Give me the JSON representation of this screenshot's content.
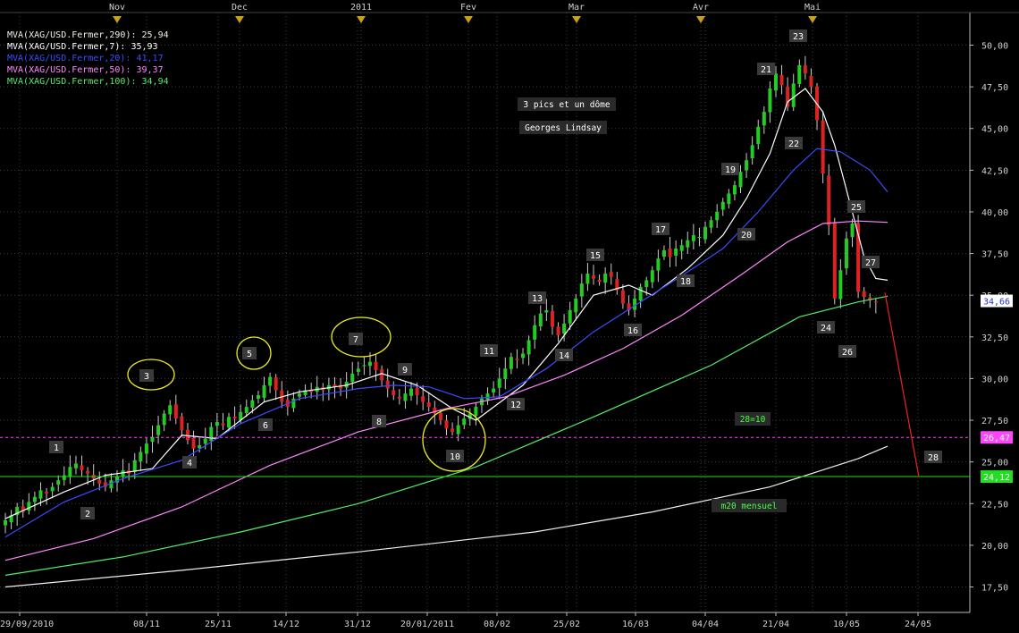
{
  "chart_data": {
    "type": "candlestick",
    "title": "",
    "ylim": [
      16.0,
      51.5
    ],
    "y_ticks": [
      "17,50",
      "20,00",
      "22,50",
      "25,00",
      "27,50",
      "30,00",
      "32,50",
      "35,00",
      "37,50",
      "40,00",
      "42,50",
      "45,00",
      "47,50",
      "50,00"
    ],
    "x_bottom_ticks": [
      "29/09/2010",
      "08/11",
      "25/11",
      "14/12",
      "31/12",
      "20/01/2011",
      "08/02",
      "25/02",
      "16/03",
      "04/04",
      "21/04",
      "10/05",
      "24/05"
    ],
    "x_top_ticks": [
      "Nov",
      "Dec",
      "2011",
      "Fev",
      "Mar",
      "Avr",
      "Mai"
    ],
    "legend": [
      {
        "text": "MVA(XAG/USD.Fermer,290): 25,94",
        "color": "#f0f0e8"
      },
      {
        "text": "MVA(XAG/USD.Fermer,7): 35,93",
        "color": "#ffffff"
      },
      {
        "text": "MVA(XAG/USD.Fermer,20): 41,17",
        "color": "#3a4cff"
      },
      {
        "text": "MVA(XAG/USD.Fermer,50): 39,37",
        "color": "#ff88ff"
      },
      {
        "text": "MVA(XAG/USD.Fermer,100): 34,94",
        "color": "#55ee66"
      }
    ],
    "close": [
      21.5,
      21.8,
      22.3,
      22.0,
      22.6,
      22.9,
      23.3,
      23.1,
      23.5,
      23.9,
      24.2,
      24.7,
      24.9,
      24.5,
      24.3,
      24.0,
      23.7,
      23.5,
      23.9,
      24.1,
      24.5,
      24.3,
      25.1,
      25.6,
      26.1,
      26.5,
      27.2,
      27.9,
      28.4,
      27.6,
      26.9,
      26.3,
      25.8,
      26.0,
      26.4,
      27.1,
      27.4,
      27.2,
      27.7,
      27.6,
      28.0,
      28.3,
      28.7,
      29.0,
      29.6,
      30.1,
      29.3,
      28.6,
      28.3,
      28.8,
      29.1,
      29.3,
      29.2,
      29.5,
      29.3,
      29.6,
      29.5,
      29.4,
      29.8,
      30.3,
      30.6,
      30.8,
      31.0,
      30.5,
      29.9,
      29.4,
      29.0,
      28.8,
      29.1,
      29.4,
      29.0,
      28.6,
      28.3,
      27.9,
      27.5,
      27.0,
      26.8,
      27.2,
      27.6,
      27.9,
      28.3,
      28.8,
      29.1,
      29.4,
      30.0,
      30.6,
      31.3,
      31.1,
      31.5,
      32.3,
      33.2,
      33.9,
      34.1,
      33.1,
      32.6,
      33.3,
      34.1,
      34.8,
      35.7,
      36.3,
      36.0,
      35.8,
      36.3,
      36.1,
      35.3,
      34.5,
      34.1,
      34.8,
      35.5,
      35.9,
      36.5,
      37.2,
      37.7,
      37.3,
      37.8,
      38.0,
      38.3,
      38.6,
      38.5,
      39.1,
      39.5,
      40.0,
      40.6,
      41.1,
      41.6,
      42.4,
      43.1,
      44.0,
      45.1,
      46.0,
      47.4,
      48.3,
      47.6,
      46.3,
      47.7,
      48.8,
      48.3,
      47.5,
      45.5,
      42.3,
      39.2,
      34.8,
      36.5,
      38.4,
      39.3,
      35.2,
      34.9,
      34.7,
      34.6
    ],
    "moving_averages": [
      {
        "name": "MVA 7",
        "color": "#ffffff",
        "values": [
          [
            0,
            21.6
          ],
          [
            10,
            23.2
          ],
          [
            17,
            24.2
          ],
          [
            25,
            24.6
          ],
          [
            30,
            26.6
          ],
          [
            36,
            26.4
          ],
          [
            44,
            28.6
          ],
          [
            50,
            29.2
          ],
          [
            58,
            29.6
          ],
          [
            64,
            30.3
          ],
          [
            70,
            29.6
          ],
          [
            76,
            28.2
          ],
          [
            80,
            27.5
          ],
          [
            88,
            29.6
          ],
          [
            94,
            32.1
          ],
          [
            100,
            35.0
          ],
          [
            106,
            35.6
          ],
          [
            110,
            35.0
          ],
          [
            116,
            36.6
          ],
          [
            122,
            38.6
          ],
          [
            126,
            40.8
          ],
          [
            130,
            43.5
          ],
          [
            133,
            46.6
          ],
          [
            136,
            47.4
          ],
          [
            139,
            46.0
          ],
          [
            141,
            44.0
          ],
          [
            144,
            40.0
          ],
          [
            146,
            37.3
          ],
          [
            148,
            36.0
          ],
          [
            150,
            35.9
          ]
        ]
      },
      {
        "name": "MVA 20",
        "color": "#3a4cff",
        "values": [
          [
            0,
            20.5
          ],
          [
            10,
            22.6
          ],
          [
            20,
            24.0
          ],
          [
            30,
            25.1
          ],
          [
            40,
            27.3
          ],
          [
            50,
            28.8
          ],
          [
            60,
            29.4
          ],
          [
            66,
            29.6
          ],
          [
            72,
            29.5
          ],
          [
            78,
            28.8
          ],
          [
            84,
            28.9
          ],
          [
            92,
            30.6
          ],
          [
            100,
            32.8
          ],
          [
            108,
            34.6
          ],
          [
            116,
            36.4
          ],
          [
            122,
            37.8
          ],
          [
            128,
            40.0
          ],
          [
            134,
            42.5
          ],
          [
            138,
            43.8
          ],
          [
            142,
            43.6
          ],
          [
            147,
            42.5
          ],
          [
            150,
            41.2
          ]
        ]
      },
      {
        "name": "MVA 50",
        "color": "#ff88ff",
        "values": [
          [
            0,
            19.1
          ],
          [
            15,
            20.4
          ],
          [
            30,
            22.3
          ],
          [
            45,
            24.8
          ],
          [
            60,
            26.8
          ],
          [
            75,
            28.2
          ],
          [
            85,
            28.9
          ],
          [
            95,
            30.2
          ],
          [
            105,
            31.8
          ],
          [
            115,
            33.8
          ],
          [
            125,
            36.2
          ],
          [
            133,
            38.2
          ],
          [
            139,
            39.3
          ],
          [
            145,
            39.45
          ],
          [
            150,
            39.37
          ]
        ]
      },
      {
        "name": "MVA 100",
        "color": "#55ee66",
        "values": [
          [
            0,
            18.2
          ],
          [
            20,
            19.3
          ],
          [
            40,
            20.8
          ],
          [
            60,
            22.5
          ],
          [
            80,
            24.7
          ],
          [
            100,
            27.7
          ],
          [
            120,
            30.8
          ],
          [
            135,
            33.7
          ],
          [
            145,
            34.6
          ],
          [
            150,
            34.94
          ]
        ]
      },
      {
        "name": "MVA 290",
        "color": "#f0f0e8",
        "values": [
          [
            0,
            17.5
          ],
          [
            30,
            18.5
          ],
          [
            60,
            19.6
          ],
          [
            90,
            20.8
          ],
          [
            110,
            22.0
          ],
          [
            130,
            23.5
          ],
          [
            145,
            25.2
          ],
          [
            150,
            25.94
          ]
        ]
      }
    ],
    "horizontal_lines": [
      {
        "value": 26.47,
        "label": "26,47",
        "color": "#ff44ff",
        "style": "dashed"
      },
      {
        "value": 24.12,
        "label": "24,12",
        "color": "#22dd22",
        "style": "solid"
      }
    ],
    "current_price": {
      "value": 34.66,
      "label": "34,66"
    },
    "projection": [
      [
        150,
        35.0
      ],
      [
        154,
        24.1
      ]
    ],
    "wave_labels": [
      "1",
      "2",
      "3",
      "4",
      "5",
      "6",
      "7",
      "8",
      "9",
      "10",
      "11",
      "12",
      "13",
      "14",
      "15",
      "16",
      "17",
      "18",
      "19",
      "20",
      "21",
      "22",
      "23",
      "24",
      "25",
      "26",
      "27",
      "28"
    ],
    "circled_labels": [
      "3",
      "5",
      "7",
      "10"
    ],
    "annotations": [
      "3 pics et un dôme",
      "Georges Lindsay",
      "28=10",
      "m20 mensuel"
    ]
  }
}
